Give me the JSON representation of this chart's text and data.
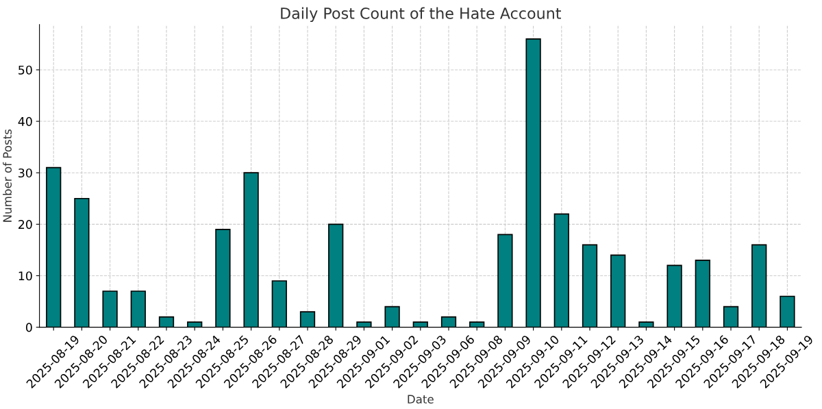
{
  "chart_data": {
    "type": "bar",
    "title": "Daily Post Count of the Hate Account",
    "xlabel": "Date",
    "ylabel": "Number of Posts",
    "categories": [
      "2025-08-19",
      "2025-08-20",
      "2025-08-21",
      "2025-08-22",
      "2025-08-23",
      "2025-08-24",
      "2025-08-25",
      "2025-08-26",
      "2025-08-27",
      "2025-08-28",
      "2025-08-29",
      "2025-09-01",
      "2025-09-02",
      "2025-09-03",
      "2025-09-06",
      "2025-09-08",
      "2025-09-09",
      "2025-09-10",
      "2025-09-11",
      "2025-09-12",
      "2025-09-13",
      "2025-09-14",
      "2025-09-15",
      "2025-09-16",
      "2025-09-17",
      "2025-09-18",
      "2025-09-19"
    ],
    "values": [
      31,
      25,
      7,
      7,
      2,
      1,
      19,
      30,
      9,
      3,
      20,
      1,
      4,
      1,
      2,
      1,
      18,
      56,
      22,
      16,
      14,
      1,
      12,
      13,
      4,
      16,
      6
    ],
    "color": "#008080",
    "ylim": [
      0,
      58.8
    ],
    "yticks": [
      0,
      10,
      20,
      30,
      40,
      50
    ],
    "grid": true
  }
}
